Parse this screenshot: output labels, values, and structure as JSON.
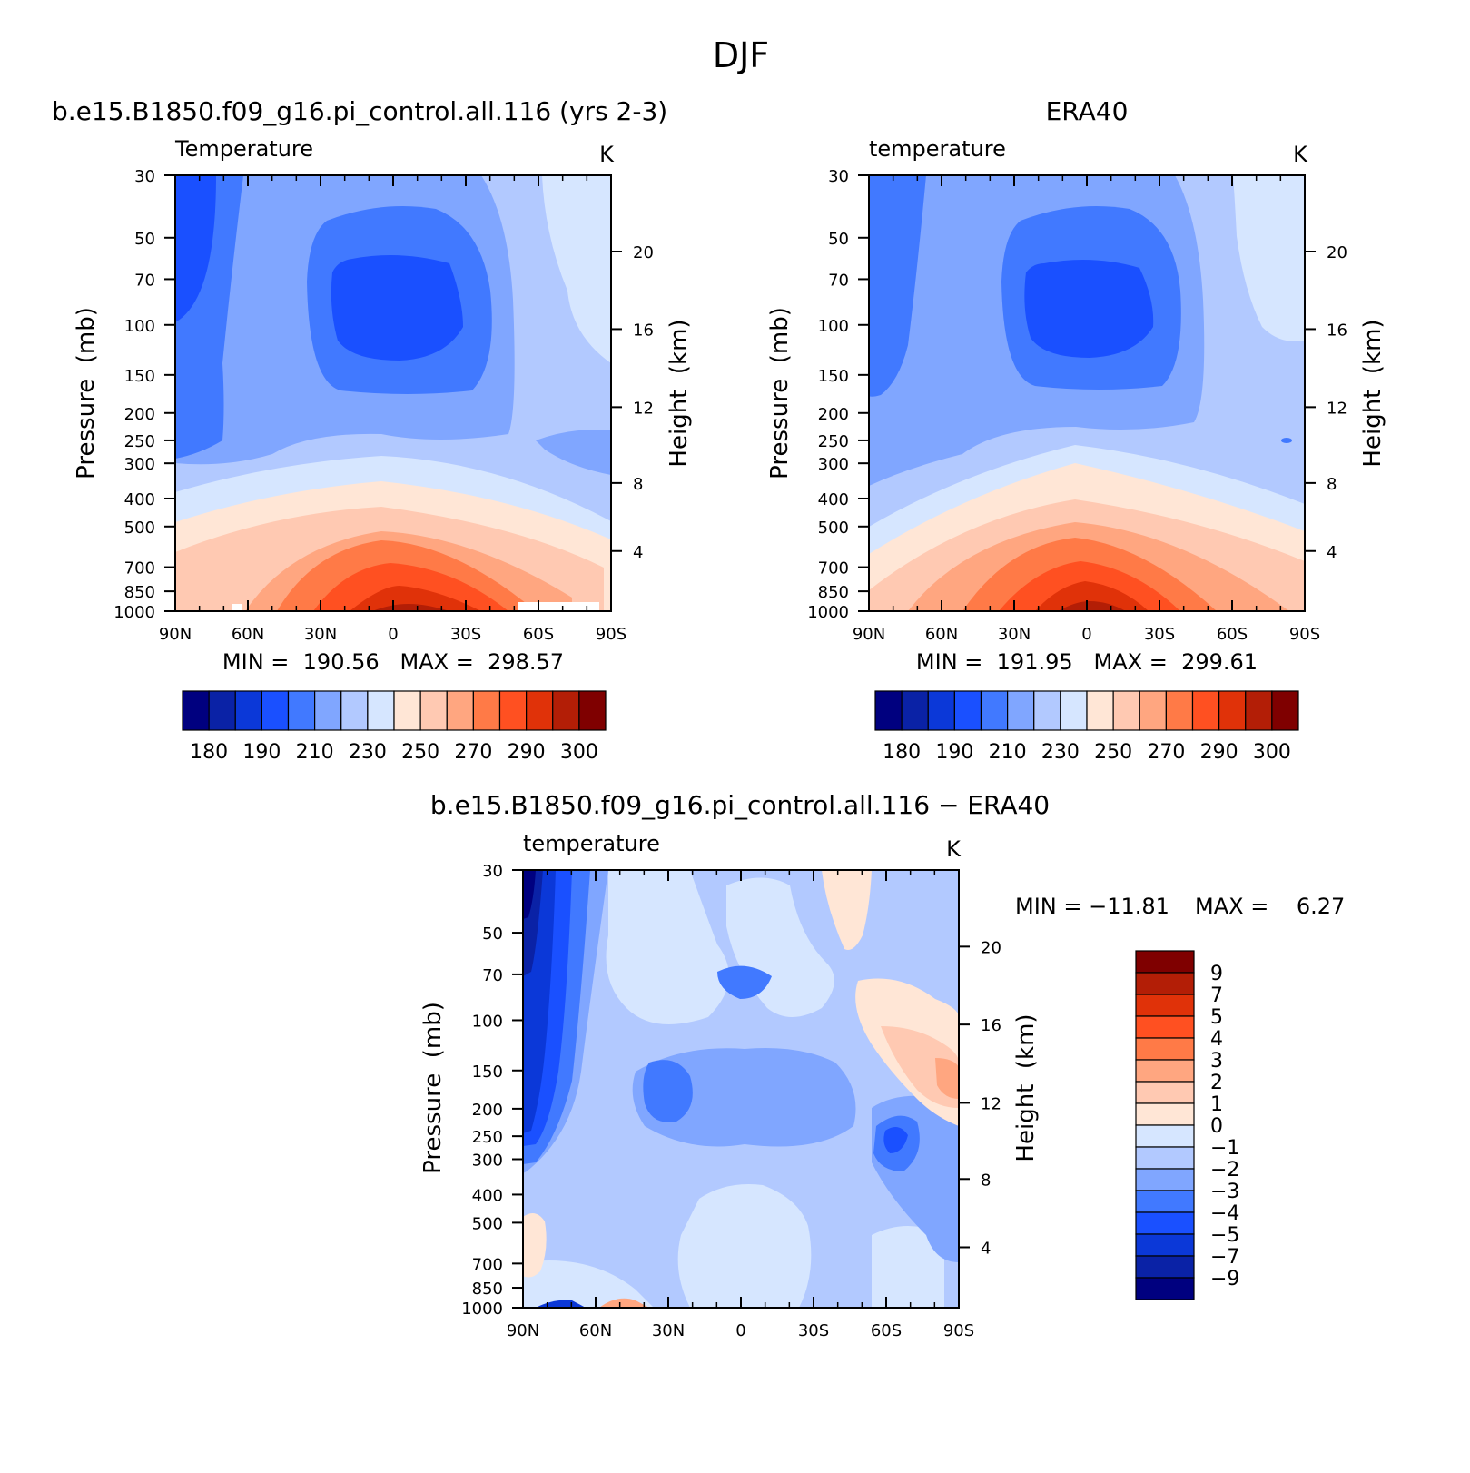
{
  "figure": {
    "title": "DJF",
    "panel_titles": [
      "b.e15.B1850.f09_g16.pi_control.all.116 (yrs 2-3)",
      "ERA40",
      "b.e15.B1850.f09_g16.pi_control.all.116 − ERA40"
    ],
    "panel_a": {
      "variable": "Temperature",
      "units": "K",
      "stats": "MIN =  190.56   MAX =  298.57",
      "ylabel": "Pressure  (mb)",
      "y2label": "Height  (km)"
    },
    "panel_b": {
      "variable": "temperature",
      "units": "K",
      "stats": "MIN =  191.95   MAX =  299.61",
      "ylabel": "Pressure  (mb)",
      "y2label": "Height  (km)"
    },
    "panel_c": {
      "variable": "temperature",
      "units": "K",
      "stats_min": "MIN = −11.81",
      "stats_max": "MAX =    6.27",
      "ylabel": "Pressure  (mb)",
      "y2label": "Height  (km)"
    }
  },
  "chart_data": [
    {
      "type": "heatmap",
      "title": "b.e15.B1850.f09_g16.pi_control.all.116 (yrs 2-3)",
      "subtitle": "Temperature",
      "units": "K",
      "x_ticks": [
        "90N",
        "60N",
        "30N",
        "0",
        "30S",
        "60S",
        "90S"
      ],
      "y_ticks": [
        "30",
        "50",
        "70",
        "100",
        "150",
        "200",
        "250",
        "300",
        "400",
        "500",
        "700",
        "850",
        "1000"
      ],
      "y2_ticks": [
        "20",
        "16",
        "12",
        "8",
        "4"
      ],
      "ylabel": "Pressure  (mb)",
      "y2label": "Height  (km)",
      "min": 190.56,
      "max": 298.57,
      "colorbar": {
        "colors": [
          "#00007f",
          "#0a22a6",
          "#0b38d8",
          "#1a50ff",
          "#4179ff",
          "#80a6ff",
          "#b2c9ff",
          "#d6e6ff",
          "#ffe6d6",
          "#ffc9b2",
          "#ffa680",
          "#ff7a47",
          "#ff5021",
          "#e03209",
          "#b31e06",
          "#7f0000"
        ],
        "labels": [
          "180",
          "190",
          "210",
          "230",
          "250",
          "270",
          "290",
          "300"
        ]
      },
      "description": "Zonal-mean temperature cross-section; tropopause minimum ~190 K near 100 mb at the equator, maximum ~298 K near 1000 mb at the equator."
    },
    {
      "type": "heatmap",
      "title": "ERA40",
      "subtitle": "temperature",
      "units": "K",
      "x_ticks": [
        "90N",
        "60N",
        "30N",
        "0",
        "30S",
        "60S",
        "90S"
      ],
      "y_ticks": [
        "30",
        "50",
        "70",
        "100",
        "150",
        "200",
        "250",
        "300",
        "400",
        "500",
        "700",
        "850",
        "1000"
      ],
      "y2_ticks": [
        "20",
        "16",
        "12",
        "8",
        "4"
      ],
      "ylabel": "Pressure  (mb)",
      "y2label": "Height  (km)",
      "min": 191.95,
      "max": 299.61,
      "colorbar": {
        "colors": [
          "#00007f",
          "#0a22a6",
          "#0b38d8",
          "#1a50ff",
          "#4179ff",
          "#80a6ff",
          "#b2c9ff",
          "#d6e6ff",
          "#ffe6d6",
          "#ffc9b2",
          "#ffa680",
          "#ff7a47",
          "#ff5021",
          "#e03209",
          "#b31e06",
          "#7f0000"
        ],
        "labels": [
          "180",
          "190",
          "210",
          "230",
          "250",
          "270",
          "290",
          "300"
        ]
      }
    },
    {
      "type": "heatmap",
      "title": "b.e15.B1850.f09_g16.pi_control.all.116 − ERA40",
      "subtitle": "temperature",
      "units": "K",
      "x_ticks": [
        "90N",
        "60N",
        "30N",
        "0",
        "30S",
        "60S",
        "90S"
      ],
      "y_ticks": [
        "30",
        "50",
        "70",
        "100",
        "150",
        "200",
        "250",
        "300",
        "400",
        "500",
        "700",
        "850",
        "1000"
      ],
      "y2_ticks": [
        "20",
        "16",
        "12",
        "8",
        "4"
      ],
      "ylabel": "Pressure  (mb)",
      "y2label": "Height  (km)",
      "min": -11.81,
      "max": 6.27,
      "colorbar": {
        "colors": [
          "#7f0000",
          "#b31e06",
          "#e03209",
          "#ff5021",
          "#ff7a47",
          "#ffa680",
          "#ffc9b2",
          "#ffe6d6",
          "#d6e6ff",
          "#b2c9ff",
          "#80a6ff",
          "#4179ff",
          "#1a50ff",
          "#0b38d8",
          "#0a22a6",
          "#00007f"
        ],
        "labels": [
          "9",
          "7",
          "5",
          "4",
          "3",
          "2",
          "1",
          "0",
          "−1",
          "−2",
          "−3",
          "−4",
          "−5",
          "−7",
          "−9"
        ]
      }
    }
  ]
}
